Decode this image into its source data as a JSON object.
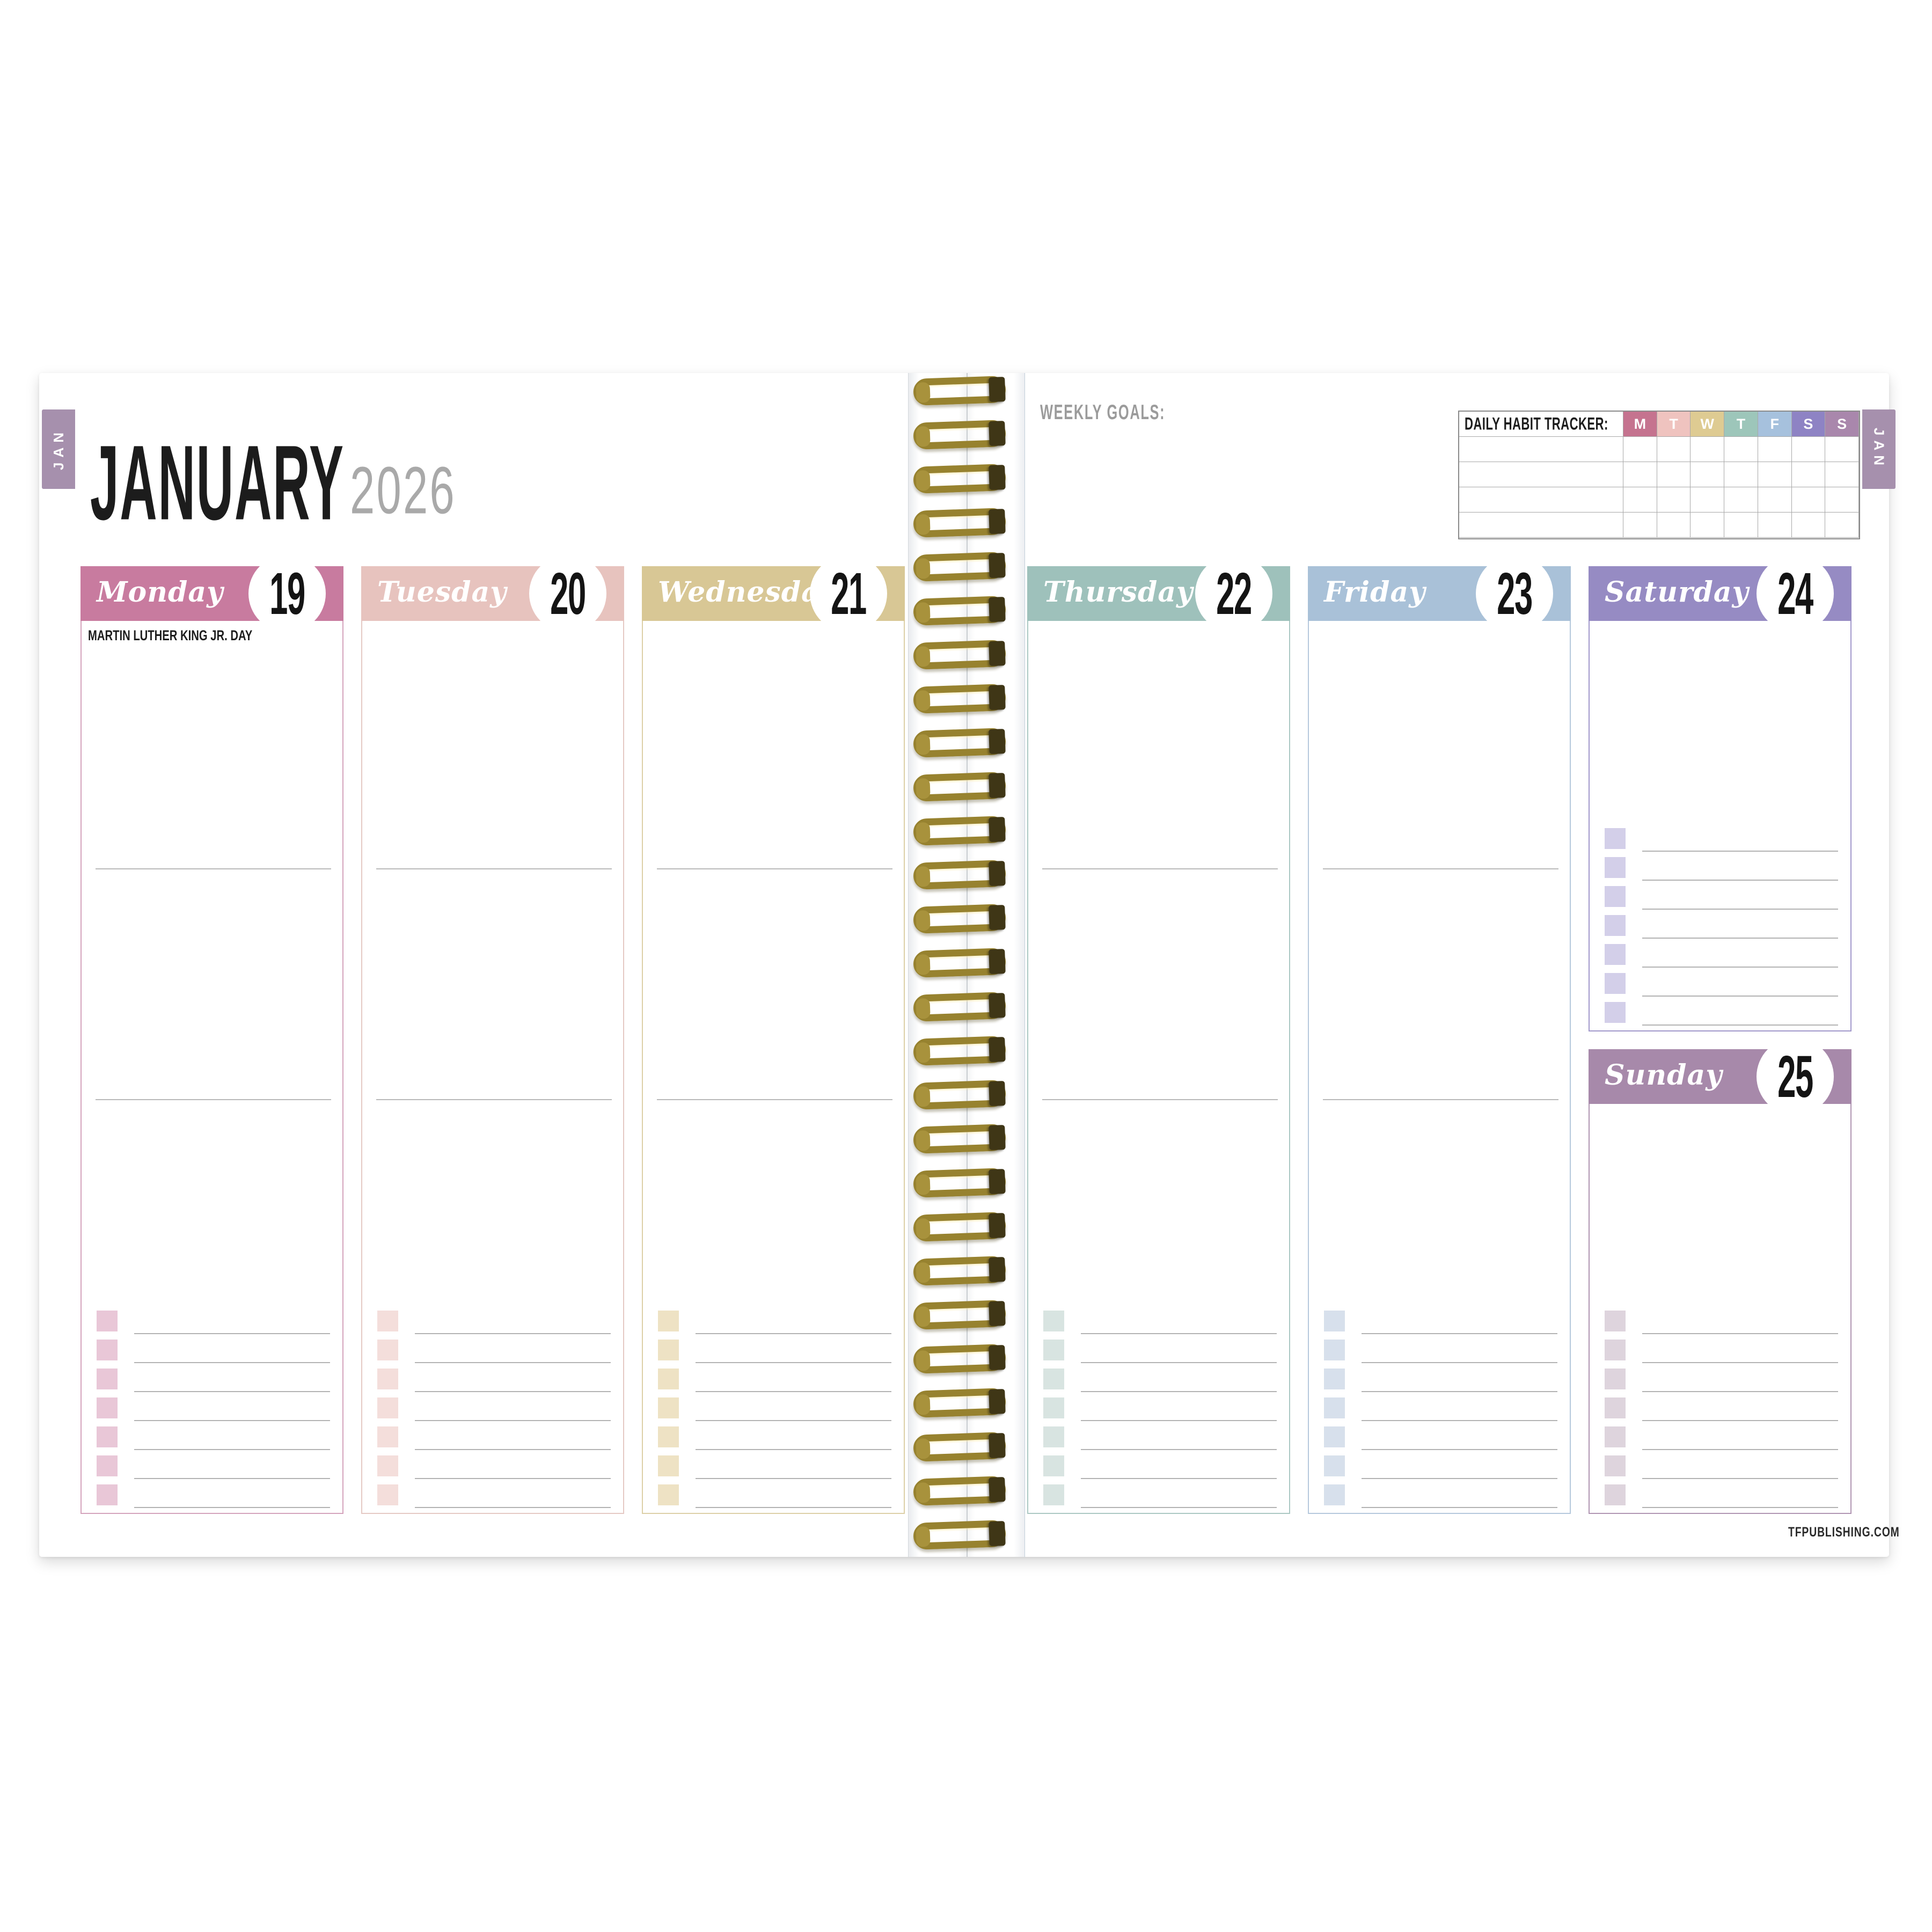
{
  "title": {
    "month": "JANUARY",
    "year": "2026"
  },
  "side_tabs": {
    "left": "JAN",
    "right": "JAN",
    "color": "#a690ad"
  },
  "weekly_goals_label": "WEEKLY GOALS:",
  "habit_tracker": {
    "label": "DAILY HABIT TRACKER:",
    "day_letters": [
      "M",
      "T",
      "W",
      "T",
      "F",
      "S",
      "S"
    ],
    "day_colors": [
      "#c5738f",
      "#efc3bf",
      "#decb92",
      "#9dc6ba",
      "#a6c1dd",
      "#8e83c4",
      "#a987ac"
    ],
    "data_rows": 4
  },
  "days": [
    {
      "name": "Monday",
      "number": "19",
      "holiday": "MARTIN LUTHER KING JR. DAY",
      "banner": "#c87b9f",
      "border": "#d4a3bc",
      "checkbox": "#e9c7d7"
    },
    {
      "name": "Tuesday",
      "number": "20",
      "banner": "#e7c3be",
      "border": "#e5c9c4",
      "checkbox": "#f4dedb"
    },
    {
      "name": "Wednesday",
      "number": "21",
      "banner": "#d8c795",
      "border": "#dccfa6",
      "checkbox": "#eee2c4"
    },
    {
      "name": "Thursday",
      "number": "22",
      "banner": "#9ec1bb",
      "border": "#abc8c3",
      "checkbox": "#d8e4e1"
    },
    {
      "name": "Friday",
      "number": "23",
      "banner": "#a9c1d8",
      "border": "#b5c8dc",
      "checkbox": "#d7e0ec"
    },
    {
      "name": "Saturday",
      "number": "24",
      "banner": "#968bc3",
      "border": "#a198cb",
      "checkbox": "#d3cfe9"
    },
    {
      "name": "Sunday",
      "number": "25",
      "banner": "#a789aa",
      "border": "#b095b2",
      "checkbox": "#ded4dd"
    }
  ],
  "checklist_rows_per_day": 7,
  "footer": "TFPUBLISHING.COM"
}
